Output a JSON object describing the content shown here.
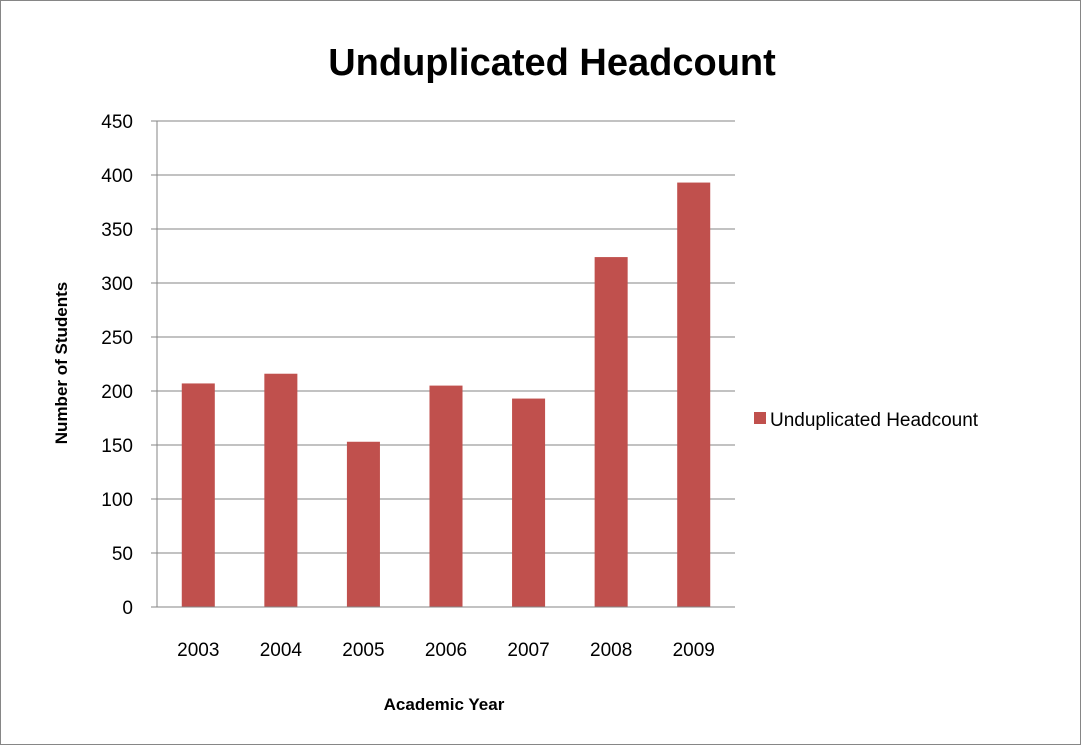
{
  "chart_data": {
    "type": "bar",
    "title": "Unduplicated Headcount",
    "xlabel": "Academic Year",
    "ylabel": "Number of Students",
    "categories": [
      "2003",
      "2004",
      "2005",
      "2006",
      "2007",
      "2008",
      "2009"
    ],
    "series": [
      {
        "name": "Unduplicated Headcount",
        "values": [
          207,
          216,
          153,
          205,
          193,
          324,
          393
        ],
        "color": "#C0504D"
      }
    ],
    "ylim": [
      0,
      450
    ],
    "yticks": [
      "0",
      "50",
      "100",
      "150",
      "200",
      "250",
      "300",
      "350",
      "400",
      "450"
    ],
    "grid": true,
    "legend": "right"
  }
}
